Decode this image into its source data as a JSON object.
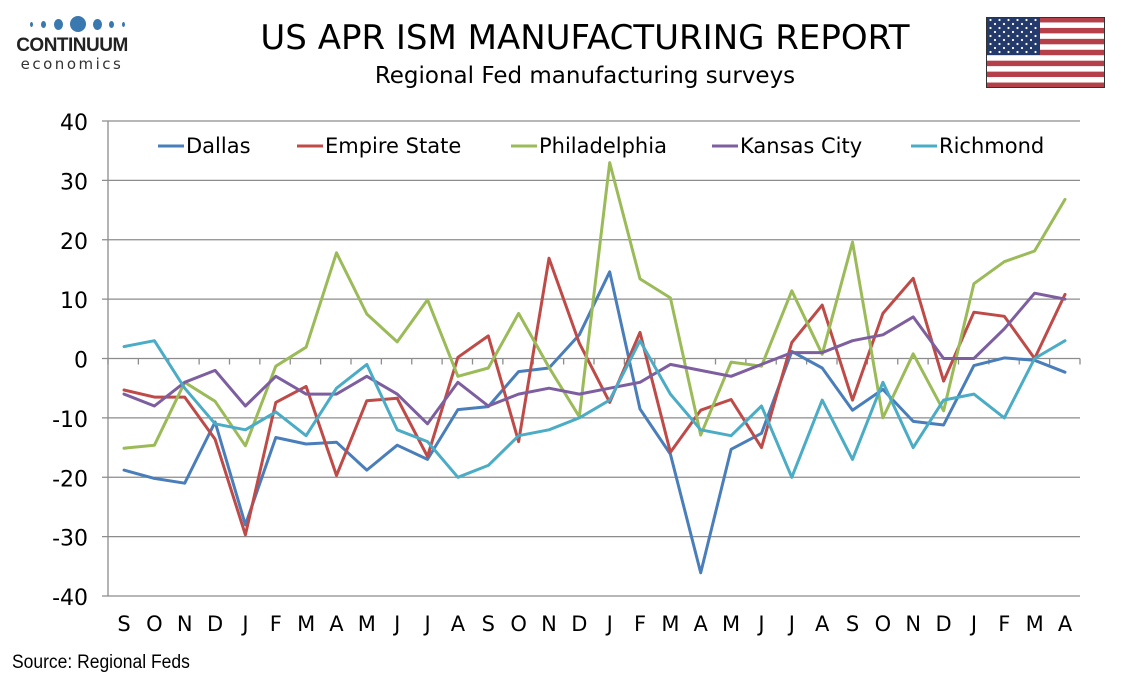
{
  "header": {
    "logo_brand": "CONTINUUM",
    "logo_sub": "economics",
    "title": "US APR ISM MANUFACTURING REPORT",
    "subtitle": "Regional Fed manufacturing surveys",
    "flag_icon": "us-flag-icon"
  },
  "footer": {
    "source": "Source: Regional Feds"
  },
  "chart_data": {
    "type": "line",
    "title": "US APR ISM MANUFACTURING REPORT",
    "subtitle": "Regional Fed manufacturing surveys",
    "xlabel": "",
    "ylabel": "",
    "ylim": [
      -40,
      40
    ],
    "yticks": [
      40,
      30,
      20,
      10,
      0,
      -10,
      -20,
      -30,
      -40
    ],
    "grid": true,
    "legend_position": "top",
    "categories": [
      "S",
      "O",
      "N",
      "D",
      "J",
      "F",
      "M",
      "A",
      "M",
      "J",
      "J",
      "A",
      "S",
      "O",
      "N",
      "D",
      "J",
      "F",
      "M",
      "A",
      "M",
      "J",
      "J",
      "A",
      "S",
      "O",
      "N",
      "D",
      "J",
      "F",
      "M",
      "A"
    ],
    "series": [
      {
        "name": "Dallas",
        "color": "#4a7ebb",
        "values": [
          -18.8,
          -20.2,
          -21.0,
          -10.7,
          -28.0,
          -13.3,
          -14.4,
          -14.1,
          -18.8,
          -14.6,
          -17.0,
          -8.6,
          -8.1,
          -2.2,
          -1.6,
          4.0,
          14.6,
          -8.5,
          -16.1,
          -36.1,
          -15.3,
          -12.6,
          1.2,
          -1.6,
          -8.7,
          -5.2,
          -10.6,
          -11.2,
          -1.2,
          0.1,
          -0.3,
          -2.3
        ]
      },
      {
        "name": "Empire State",
        "color": "#be4b48",
        "values": [
          -5.3,
          -6.5,
          -6.5,
          -13.6,
          -29.7,
          -7.4,
          -4.7,
          -19.7,
          -7.1,
          -6.7,
          -16.5,
          0.2,
          3.8,
          -14.0,
          16.9,
          2.6,
          -7.4,
          4.4,
          -15.8,
          -8.7,
          -6.9,
          -15.0,
          2.7,
          9.0,
          -7.0,
          7.6,
          13.5,
          -3.8,
          7.8,
          7.1,
          0.0,
          10.8
        ]
      },
      {
        "name": "Philadelphia",
        "color": "#9bbb59",
        "values": [
          -15.1,
          -14.6,
          -4.0,
          -7.2,
          -14.7,
          -1.3,
          1.9,
          17.8,
          7.5,
          2.8,
          9.9,
          -3.0,
          -1.6,
          7.6,
          -1.5,
          -9.8,
          33.0,
          13.4,
          10.2,
          -12.9,
          -0.6,
          -1.3,
          11.4,
          0.7,
          19.6,
          -10.0,
          0.8,
          -8.8,
          12.6,
          16.3,
          18.1,
          26.8
        ]
      },
      {
        "name": "Kansas City",
        "color": "#7d5fa0",
        "values": [
          -6,
          -8,
          -4,
          -2,
          -8,
          -3,
          -6,
          -6,
          -3,
          -6,
          -11,
          -4,
          -8,
          -6,
          -5,
          -6,
          -5,
          -4,
          -1,
          -2,
          -3,
          -1,
          1,
          1,
          3,
          4,
          7,
          0,
          0,
          5,
          11,
          10
        ]
      },
      {
        "name": "Richmond",
        "color": "#4bacc6",
        "values": [
          2,
          3,
          -5,
          -11,
          -12,
          -9,
          -13,
          -5,
          -1,
          -12,
          -14,
          -20,
          -18,
          -13,
          -12,
          -10,
          -7,
          3,
          -6,
          -12,
          -13,
          -8,
          -20,
          -7,
          -17,
          -4,
          -15,
          -7,
          -6,
          -10,
          0,
          3
        ]
      }
    ]
  }
}
